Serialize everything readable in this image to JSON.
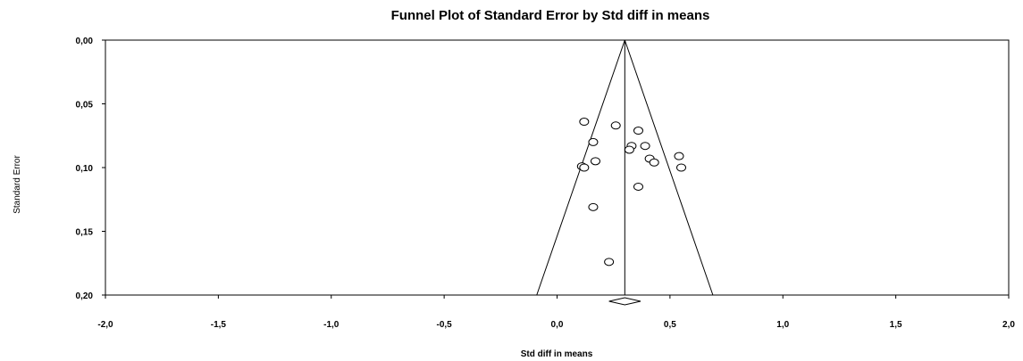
{
  "chart_data": {
    "type": "scatter",
    "title": "Funnel Plot of Standard Error by Std diff in means",
    "xlabel": "Std diff in means",
    "ylabel": "Standard Error",
    "xlim": [
      -2.0,
      2.0
    ],
    "ylim": [
      0.0,
      0.2
    ],
    "y_inverted": true,
    "grid": false,
    "x_ticks": [
      -2.0,
      -1.5,
      -1.0,
      -0.5,
      0.0,
      0.5,
      1.0,
      1.5,
      2.0
    ],
    "x_tick_labels": [
      "-2,0",
      "-1,5",
      "-1,0",
      "-0,5",
      "0,0",
      "0,5",
      "1,0",
      "1,5",
      "2,0"
    ],
    "y_ticks": [
      0.0,
      0.05,
      0.1,
      0.15,
      0.2
    ],
    "y_tick_labels": [
      "0,00",
      "0,05",
      "0,10",
      "0,15",
      "0,20"
    ],
    "pooled_effect": 0.3,
    "funnel_bottom": [
      -0.09,
      0.69
    ],
    "summary_diamond": {
      "center": 0.3,
      "lower": 0.23,
      "upper": 0.37
    },
    "points": [
      {
        "x": 0.12,
        "y": 0.064
      },
      {
        "x": 0.26,
        "y": 0.067
      },
      {
        "x": 0.36,
        "y": 0.071
      },
      {
        "x": 0.16,
        "y": 0.08
      },
      {
        "x": 0.33,
        "y": 0.083
      },
      {
        "x": 0.39,
        "y": 0.083
      },
      {
        "x": 0.32,
        "y": 0.086
      },
      {
        "x": 0.54,
        "y": 0.091
      },
      {
        "x": 0.41,
        "y": 0.093
      },
      {
        "x": 0.17,
        "y": 0.095
      },
      {
        "x": 0.43,
        "y": 0.096
      },
      {
        "x": 0.11,
        "y": 0.099
      },
      {
        "x": 0.12,
        "y": 0.1
      },
      {
        "x": 0.55,
        "y": 0.1
      },
      {
        "x": 0.36,
        "y": 0.115
      },
      {
        "x": 0.16,
        "y": 0.131
      },
      {
        "x": 0.23,
        "y": 0.174
      }
    ]
  }
}
